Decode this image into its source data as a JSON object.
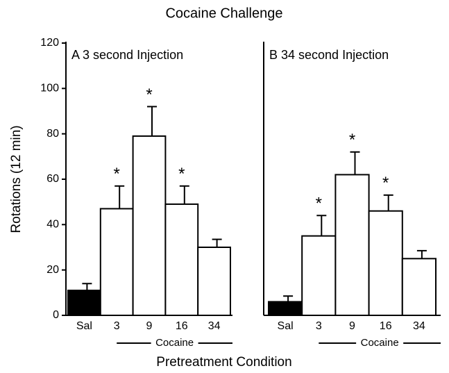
{
  "figure": {
    "title": "Cocaine Challenge",
    "x_label": "Pretreatment Condition",
    "y_label": "Rotations (12 min)"
  },
  "chart_data": [
    {
      "type": "bar",
      "title": "A  3 second Injection",
      "categories": [
        "Sal",
        "3",
        "9",
        "16",
        "34"
      ],
      "values": [
        11,
        47,
        79,
        49,
        30
      ],
      "errors": [
        3,
        10,
        13,
        8,
        3.5
      ],
      "colors": [
        "#000000",
        "#ffffff",
        "#ffffff",
        "#ffffff",
        "#ffffff"
      ],
      "markers": [
        null,
        "*",
        "*",
        "*",
        null
      ],
      "group_label": "Cocaine",
      "ylim": [
        0,
        120
      ],
      "yticks": [
        0,
        20,
        40,
        60,
        80,
        100,
        120
      ]
    },
    {
      "type": "bar",
      "title": "B  34 second Injection",
      "categories": [
        "Sal",
        "3",
        "9",
        "16",
        "34"
      ],
      "values": [
        6,
        35,
        62,
        46,
        25
      ],
      "errors": [
        2.5,
        9,
        10,
        7,
        3.5
      ],
      "colors": [
        "#000000",
        "#ffffff",
        "#ffffff",
        "#ffffff",
        "#ffffff"
      ],
      "markers": [
        null,
        "*",
        "*",
        "*",
        null
      ],
      "group_label": "Cocaine",
      "ylim": [
        0,
        120
      ]
    }
  ]
}
